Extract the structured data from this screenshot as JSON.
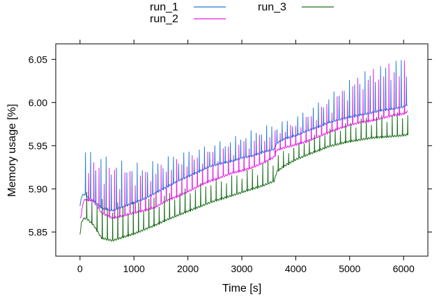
{
  "chart_data": {
    "type": "line",
    "title": "",
    "xlabel": "Time [s]",
    "ylabel": "Memory usage [%]",
    "xlim": [
      -450,
      6450
    ],
    "ylim": [
      5.822,
      6.068
    ],
    "x_ticks": [
      0,
      1000,
      2000,
      3000,
      4000,
      5000,
      6000
    ],
    "x_tick_labels": [
      "0",
      "1000",
      "2000",
      "3000",
      "4000",
      "5000",
      "6000"
    ],
    "y_ticks": [
      5.85,
      5.9,
      5.95,
      6.0,
      6.05
    ],
    "y_tick_labels": [
      "5.85",
      "5.90",
      "5.95",
      "6.00",
      "6.05"
    ],
    "grid": false,
    "legend_position": "top",
    "series": [
      {
        "name": "run_1",
        "color": "#1f78d8",
        "x": [
          0,
          30,
          60,
          100,
          150,
          250,
          400,
          600,
          800,
          1000,
          1200,
          1400,
          1600,
          1800,
          2000,
          2200,
          2400,
          2600,
          2800,
          3000,
          3200,
          3400,
          3600,
          3650,
          3800,
          4000,
          4200,
          4400,
          4600,
          4800,
          5000,
          5200,
          5400,
          5600,
          5800,
          6000,
          6080
        ],
        "y": [
          5.88,
          5.892,
          5.893,
          5.894,
          5.889,
          5.886,
          5.878,
          5.875,
          5.879,
          5.884,
          5.889,
          5.895,
          5.902,
          5.909,
          5.914,
          5.92,
          5.926,
          5.929,
          5.932,
          5.936,
          5.938,
          5.943,
          5.946,
          5.953,
          5.958,
          5.962,
          5.967,
          5.971,
          5.977,
          5.98,
          5.983,
          5.986,
          5.988,
          5.991,
          5.993,
          5.995,
          5.998
        ],
        "spike_peaks": [
          5.946,
          5.944,
          5.934,
          5.931,
          5.929,
          5.936,
          5.942,
          5.946,
          5.952,
          5.958,
          5.964,
          5.972,
          5.977,
          5.982,
          5.994,
          6.006,
          6.02,
          6.034,
          6.04,
          6.049,
          6.055
        ]
      },
      {
        "name": "run_2",
        "color": "#e81ee8",
        "x": [
          0,
          30,
          60,
          100,
          150,
          250,
          400,
          600,
          800,
          1000,
          1200,
          1400,
          1600,
          1800,
          2000,
          2200,
          2400,
          2600,
          2800,
          3000,
          3200,
          3400,
          3600,
          3650,
          3800,
          4000,
          4200,
          4400,
          4600,
          4800,
          5000,
          5200,
          5400,
          5600,
          5800,
          6000,
          6080
        ],
        "y": [
          5.865,
          5.872,
          5.885,
          5.888,
          5.887,
          5.886,
          5.872,
          5.866,
          5.869,
          5.872,
          5.875,
          5.879,
          5.886,
          5.891,
          5.897,
          5.903,
          5.909,
          5.913,
          5.918,
          5.921,
          5.925,
          5.93,
          5.937,
          5.945,
          5.948,
          5.951,
          5.955,
          5.96,
          5.965,
          5.97,
          5.974,
          5.977,
          5.979,
          5.982,
          5.985,
          5.987,
          5.99
        ],
        "spike_peaks": [
          5.938,
          5.93,
          5.926,
          5.922,
          5.92,
          5.928,
          5.935,
          5.94,
          5.945,
          5.95,
          5.956,
          5.963,
          5.968,
          5.975,
          5.986,
          6.0,
          6.015,
          6.03,
          6.04,
          6.046,
          6.05
        ]
      },
      {
        "name": "run_3",
        "color": "#1b6e1b",
        "x": [
          0,
          30,
          60,
          100,
          150,
          250,
          400,
          600,
          800,
          1000,
          1200,
          1400,
          1600,
          1800,
          2000,
          2200,
          2400,
          2600,
          2800,
          3000,
          3200,
          3400,
          3600,
          3650,
          3800,
          4000,
          4200,
          4400,
          4600,
          4800,
          5000,
          5200,
          5400,
          5600,
          5800,
          6000,
          6080
        ],
        "y": [
          5.848,
          5.862,
          5.865,
          5.866,
          5.864,
          5.858,
          5.843,
          5.84,
          5.844,
          5.848,
          5.853,
          5.858,
          5.864,
          5.869,
          5.874,
          5.879,
          5.884,
          5.888,
          5.892,
          5.896,
          5.9,
          5.904,
          5.909,
          5.92,
          5.927,
          5.934,
          5.939,
          5.944,
          5.949,
          5.952,
          5.955,
          5.957,
          5.959,
          5.96,
          5.961,
          5.962,
          5.963
        ],
        "spike_peaks": [
          5.9,
          5.89,
          5.884,
          5.885,
          5.889,
          5.894,
          5.898,
          5.904,
          5.91,
          5.914,
          5.921,
          5.929,
          5.94,
          5.95,
          5.96,
          5.968,
          5.975,
          5.982,
          5.985,
          5.988,
          5.99
        ]
      }
    ]
  }
}
